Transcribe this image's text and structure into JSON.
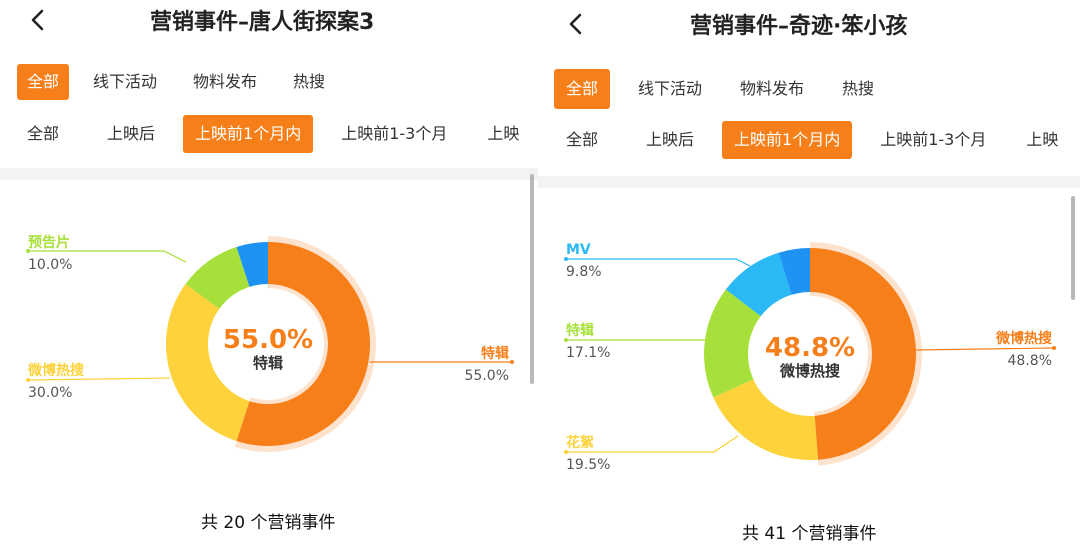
{
  "colors": {
    "accent": "#f77f1a",
    "orange": "#f77f1a",
    "yellow": "#fdd23a",
    "green": "#a7e03a",
    "blue": "#1f93f3",
    "cyan": "#2ab9f4"
  },
  "panels": [
    {
      "title": "营销事件–唐人街探案3",
      "tabs": [
        {
          "label": "全部",
          "active": true
        },
        {
          "label": "线下活动",
          "active": false
        },
        {
          "label": "物料发布",
          "active": false
        },
        {
          "label": "热搜",
          "active": false
        }
      ],
      "subtabs": [
        {
          "label": "全部",
          "active": false
        },
        {
          "label": "上映后",
          "active": false
        },
        {
          "label": "上映前1个月内",
          "active": true
        },
        {
          "label": "上映前1-3个月",
          "active": false
        },
        {
          "label": "上映",
          "active": false
        }
      ],
      "total": "共 20 个营销事件",
      "chart_data": {
        "type": "pie",
        "center_value": "55.0%",
        "center_label": "特辑",
        "slices": [
          {
            "label": "特辑",
            "value": 55.0,
            "display": "55.0%",
            "color": "#f77f1a"
          },
          {
            "label": "微博热搜",
            "value": 30.0,
            "display": "30.0%",
            "color": "#fdd23a"
          },
          {
            "label": "预告片",
            "value": 10.0,
            "display": "10.0%",
            "color": "#a7e03a"
          },
          {
            "label": "",
            "value": 5.0,
            "display": "",
            "color": "#1f93f3"
          }
        ]
      }
    },
    {
      "title": "营销事件–奇迹·笨小孩",
      "tabs": [
        {
          "label": "全部",
          "active": true
        },
        {
          "label": "线下活动",
          "active": false
        },
        {
          "label": "物料发布",
          "active": false
        },
        {
          "label": "热搜",
          "active": false
        }
      ],
      "subtabs": [
        {
          "label": "全部",
          "active": false
        },
        {
          "label": "上映后",
          "active": false
        },
        {
          "label": "上映前1个月内",
          "active": true
        },
        {
          "label": "上映前1-3个月",
          "active": false
        },
        {
          "label": "上映",
          "active": false
        }
      ],
      "total": "共 41 个营销事件",
      "chart_data": {
        "type": "pie",
        "center_value": "48.8%",
        "center_label": "微博热搜",
        "slices": [
          {
            "label": "微博热搜",
            "value": 48.8,
            "display": "48.8%",
            "color": "#f77f1a"
          },
          {
            "label": "花絮",
            "value": 19.5,
            "display": "19.5%",
            "color": "#fdd23a"
          },
          {
            "label": "特辑",
            "value": 17.1,
            "display": "17.1%",
            "color": "#a7e03a"
          },
          {
            "label": "MV",
            "value": 9.8,
            "display": "9.8%",
            "color": "#2ab9f4"
          },
          {
            "label": "",
            "value": 4.8,
            "display": "",
            "color": "#1f93f3"
          }
        ]
      }
    }
  ]
}
